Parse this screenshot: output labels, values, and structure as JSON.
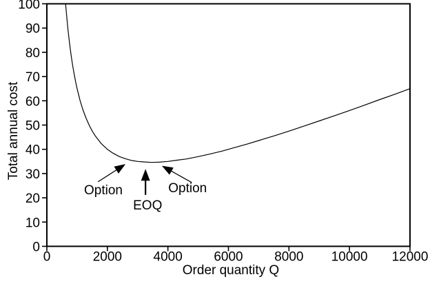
{
  "chart_data": {
    "type": "line",
    "title": "",
    "xlabel": "Order quantity Q",
    "ylabel": "Total annual cost",
    "xlim": [
      0,
      12000
    ],
    "ylim": [
      0,
      100
    ],
    "grid": false,
    "frame_box": true,
    "legend": "none",
    "colors": {
      "line": "#000000",
      "text": "#000000",
      "background": "#ffffff"
    },
    "x_ticks": {
      "values": [
        0,
        2000,
        4000,
        6000,
        8000,
        10000,
        12000
      ],
      "labels": [
        "0",
        "2000",
        "4000",
        "6000",
        "8000",
        "10000",
        "12000"
      ]
    },
    "y_ticks": {
      "values": [
        0,
        10,
        20,
        30,
        40,
        50,
        60,
        70,
        80,
        90,
        100
      ],
      "labels": [
        "0",
        "10",
        "20",
        "30",
        "40",
        "50",
        "60",
        "70",
        "80",
        "90",
        "100"
      ]
    },
    "series": [
      {
        "name": "total-annual-cost-curve",
        "x": [
          620,
          660,
          700,
          750,
          800,
          850,
          900,
          950,
          1000,
          1100,
          1200,
          1300,
          1400,
          1500,
          1600,
          1800,
          2000,
          2200,
          2400,
          2600,
          2800,
          3000,
          3200,
          3464,
          3700,
          4000,
          4300,
          4600,
          5000,
          5400,
          5800,
          6200,
          6600,
          7000,
          7500,
          8000,
          8500,
          9000,
          9500,
          10000,
          10500,
          11000,
          11500,
          12000
        ],
        "y": [
          99.9,
          94.2,
          89.2,
          83.8,
          79.0,
          74.8,
          71.2,
          67.9,
          65.0,
          60.0,
          56.0,
          52.7,
          49.9,
          47.5,
          45.5,
          42.3,
          40.0,
          38.3,
          37.0,
          36.1,
          35.4,
          35.0,
          34.8,
          34.6,
          34.7,
          35.0,
          35.5,
          36.0,
          37.0,
          38.1,
          39.3,
          40.7,
          42.1,
          43.6,
          45.5,
          47.5,
          49.6,
          51.7,
          53.8,
          56.0,
          58.2,
          60.5,
          62.7,
          65.0
        ]
      }
    ],
    "eoq_minimum": {
      "q": 3464,
      "cost": 34.6
    },
    "annotations": [
      {
        "label": "Option",
        "text_q": 1867,
        "text_cost": 23.5,
        "arrow_tail_q": 1690,
        "arrow_tail_cost": 26.6,
        "arrow_tip_q": 2600,
        "arrow_tip_cost": 33.9,
        "arrow_style": "thin"
      },
      {
        "label": "EOQ",
        "text_q": 3330,
        "text_cost": 17.2,
        "arrow_tail_q": 3260,
        "arrow_tail_cost": 21.2,
        "arrow_tip_q": 3260,
        "arrow_tip_cost": 31.9,
        "arrow_style": "thick"
      },
      {
        "label": "Option",
        "text_q": 4650,
        "text_cost": 24.3,
        "arrow_tail_q": 4790,
        "arrow_tail_cost": 26.3,
        "arrow_tip_q": 3800,
        "arrow_tip_cost": 33.2,
        "arrow_style": "thin"
      }
    ]
  }
}
